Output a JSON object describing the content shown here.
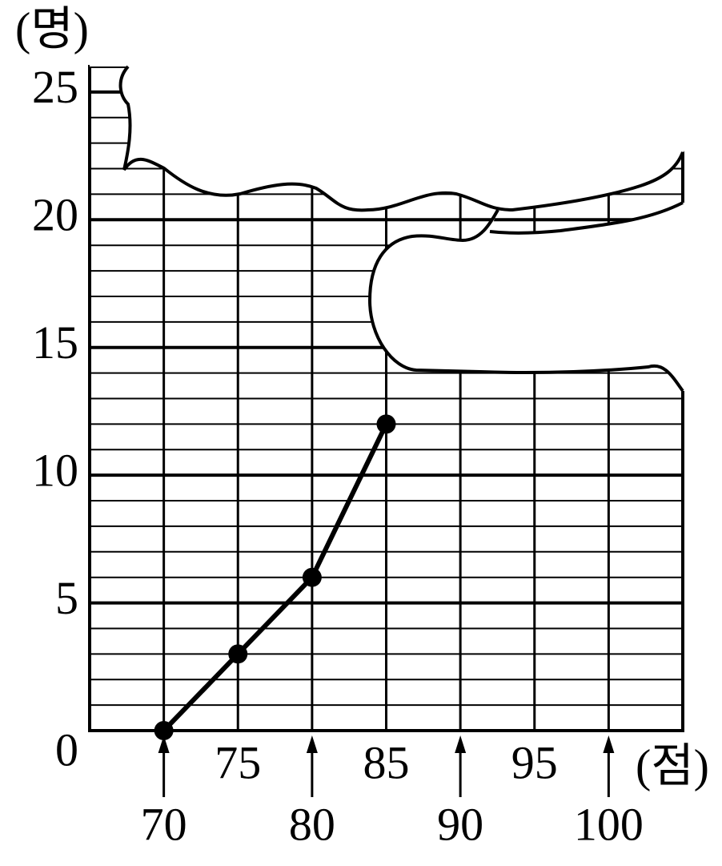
{
  "chart_data": {
    "type": "line",
    "y_unit_label": "(명)",
    "x_unit_label": "(점)",
    "x": [
      70,
      75,
      80,
      85
    ],
    "values": [
      0,
      3,
      6,
      12
    ],
    "color": "#000000",
    "xlim": [
      65,
      105
    ],
    "xticks": [
      70,
      75,
      80,
      85,
      90,
      95,
      100
    ],
    "ylim": [
      0,
      26
    ],
    "yticks": [
      0,
      5,
      10,
      15,
      20,
      25
    ],
    "grid": true
  }
}
